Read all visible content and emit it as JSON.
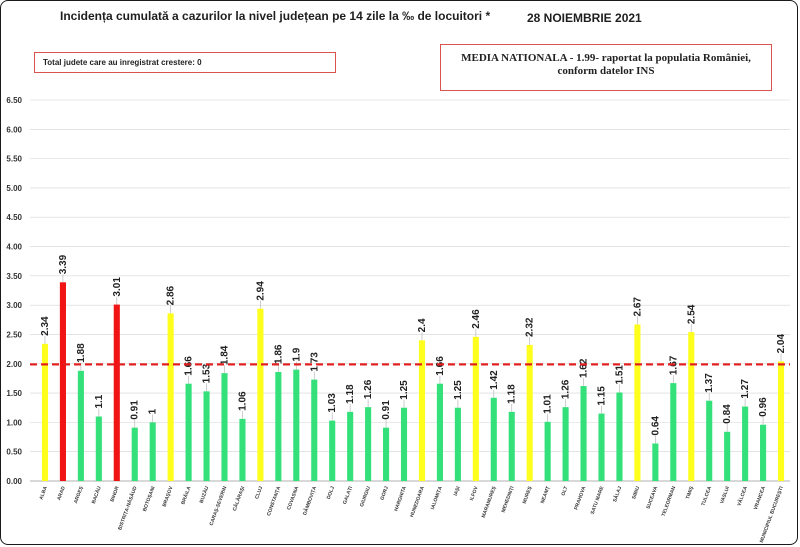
{
  "title": "Incidența cumulată a cazurilor la nivel județean pe 14 zile la ‰ de locuitori *",
  "date": "28 NOIEMBRIE 2021",
  "notes": {
    "increase_text": "Total judete care au inregistrat crestere: 0",
    "national_text": "MEDIA NATIONALA - 1.99-  raportat la populatia României, conform datelor INS"
  },
  "colors": {
    "green": "#33e07a",
    "red": "#f01414",
    "yellow": "#ffff1e",
    "reference": "#e02020",
    "grid": "#d4d4d4"
  },
  "chart_data": {
    "type": "bar",
    "title": "Incidența cumulată a cazurilor la nivel județean pe 14 zile la ‰ de locuitori *",
    "xlabel": "",
    "ylabel": "",
    "ylim": [
      0,
      6.5
    ],
    "yticks": [
      "0.00",
      "0.50",
      "1.00",
      "1.50",
      "2.00",
      "2.50",
      "3.00",
      "3.50",
      "4.00",
      "4.50",
      "5.00",
      "5.50",
      "6.00",
      "6.50"
    ],
    "reference_line": 1.99,
    "grid": true,
    "categories": [
      "ALBA",
      "ARAD",
      "ARGEȘ",
      "BACĂU",
      "BIHOR",
      "BISTRIȚA-NĂSĂUD",
      "BOTOȘANI",
      "BRAȘOV",
      "BRĂILA",
      "BUZĂU",
      "CARAȘ-SEVERIN",
      "CĂLĂRAȘI",
      "CLUJ",
      "CONSTANȚA",
      "COVASNA",
      "DÂMBOVIȚA",
      "DOLJ",
      "GALAȚI",
      "GIURGIU",
      "GORJ",
      "HARGHITA",
      "HUNEDOARA",
      "IALOMIȚA",
      "IAȘI",
      "ILFOV",
      "MARAMUREȘ",
      "MEHEDINȚI",
      "MUREȘ",
      "NEAMȚ",
      "OLT",
      "PRAHOVA",
      "SATU MARE",
      "SĂLAJ",
      "SIBIU",
      "SUCEAVA",
      "TELEORMAN",
      "TIMIȘ",
      "TULCEA",
      "VASLUI",
      "VÂLCEA",
      "VRANCEA",
      "MUNICIPIUL BUCUREȘTI"
    ],
    "values": [
      2.34,
      3.39,
      1.88,
      1.1,
      3.01,
      0.91,
      1,
      2.86,
      1.66,
      1.53,
      1.84,
      1.06,
      2.94,
      1.86,
      1.9,
      1.73,
      1.03,
      1.18,
      1.26,
      0.91,
      1.25,
      2.4,
      1.66,
      1.25,
      2.46,
      1.42,
      1.18,
      2.32,
      1.01,
      1.26,
      1.62,
      1.15,
      1.51,
      2.67,
      0.64,
      1.67,
      2.54,
      1.37,
      0.84,
      1.27,
      0.96,
      2.04
    ],
    "value_labels": [
      "2.34",
      "3.39",
      "1.88",
      "1.1",
      "3.01",
      "0.91",
      "1",
      "2.86",
      "1.66",
      "1.53",
      "1.84",
      "1.06",
      "2.94",
      "1.86",
      "1.9",
      "1.73",
      "1.03",
      "1.18",
      "1.26",
      "0.91",
      "1.25",
      "2.4",
      "1.66",
      "1.25",
      "2.46",
      "1.42",
      "1.18",
      "2.32",
      "1.01",
      "1.26",
      "1.62",
      "1.15",
      "1.51",
      "2.67",
      "0.64",
      "1.67",
      "2.54",
      "1.37",
      "0.84",
      "1.27",
      "0.96",
      "2.04"
    ],
    "bar_colors": [
      "yellow",
      "red",
      "green",
      "green",
      "red",
      "green",
      "green",
      "yellow",
      "green",
      "green",
      "green",
      "green",
      "yellow",
      "green",
      "green",
      "green",
      "green",
      "green",
      "green",
      "green",
      "green",
      "yellow",
      "green",
      "green",
      "yellow",
      "green",
      "green",
      "yellow",
      "green",
      "green",
      "green",
      "green",
      "green",
      "yellow",
      "green",
      "green",
      "yellow",
      "green",
      "green",
      "green",
      "green",
      "yellow"
    ]
  }
}
